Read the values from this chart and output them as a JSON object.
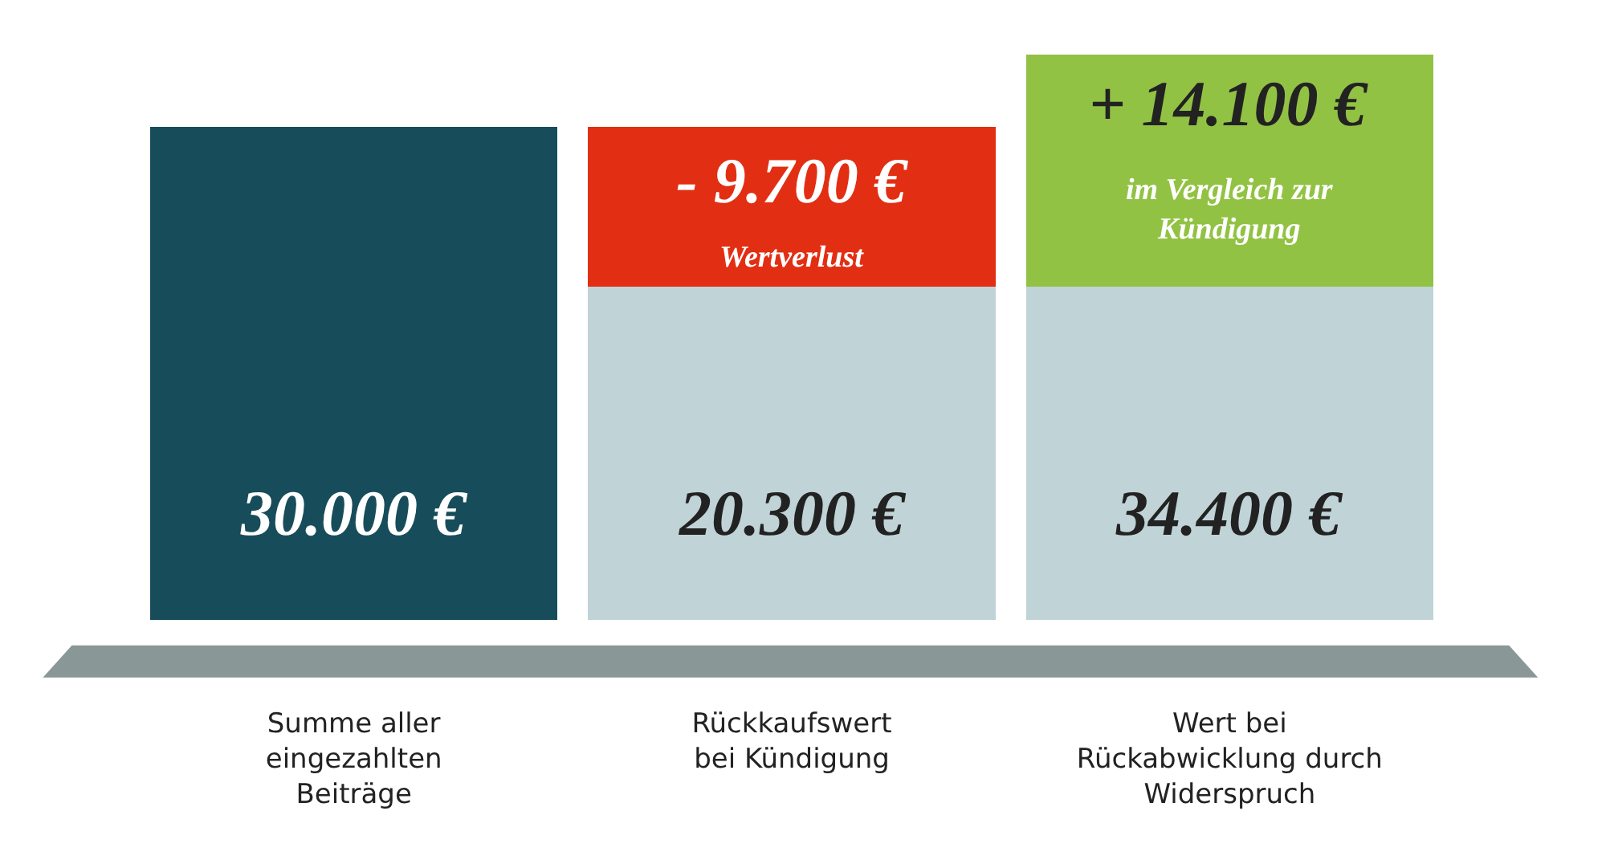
{
  "chart_data": {
    "type": "bar",
    "stacked": true,
    "tick_labels": "x",
    "ylim": [
      0,
      34400
    ],
    "categories": [
      "Summe aller\neingezahlten\nBeiträge",
      "Rückkaufswert\nbei Kündigung",
      "Wert bei\nRückabwicklung durch\nWiderspruch"
    ],
    "series": [
      {
        "color": "#174d5a",
        "values": [
          30000,
          null,
          null
        ],
        "value_labels": [
          "30.000 €",
          null,
          null
        ]
      },
      {
        "color": "#c0d3d7",
        "values": [
          null,
          20300,
          20300
        ],
        "value_labels": [
          null,
          "20.300 €",
          null
        ]
      },
      {
        "color": "#e22e12",
        "values": [
          null,
          9700,
          null
        ]
      },
      {
        "color": "#92c244",
        "values": [
          null,
          null,
          14100
        ],
        "value_labels": [
          null,
          null,
          "+ 14.100 €"
        ]
      }
    ],
    "annotations": [
      "- 9.700 €",
      "Wertverlust",
      "im Vergleich zur\nKündigung",
      "34.400 €"
    ]
  }
}
